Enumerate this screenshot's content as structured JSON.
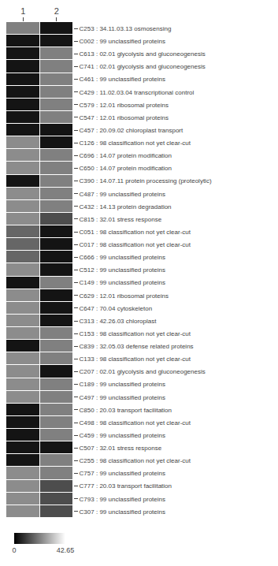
{
  "chart_data": {
    "type": "heatmap",
    "color": "gray",
    "x": [
      "1",
      "2"
    ],
    "categories": [
      "C253 : 34.11.03.13 osmosensing",
      "C002 : 99 unclassified proteins",
      "C613 : 02.01 glycolysis and gluconeogenesis",
      "C741 : 02.01 glycolysis and gluconeogenesis",
      "C461 : 99 unclassified proteins",
      "C429 : 11.02.03.04 transcriptional control",
      "C579 : 12.01 ribosomal proteins",
      "C547 : 12.01 ribosomal proteins",
      "C457 : 20.09.02 chloroplast transport",
      "C126 : 98 classification not yet clear-cut",
      "C696 : 14.07 protein modification",
      "C650 : 14.07 protein modification",
      "C390 : 14.07.11 protein processing (proteolytic)",
      "C487 : 99 unclassified proteins",
      "C432 : 14.13 protein degradation",
      "C815 : 32.01 stress response",
      "C051 : 98 classification not yet clear-cut",
      "C017 : 98 classification not yet clear-cut",
      "C666 : 99 unclassified proteins",
      "C512 : 99 unclassified proteins",
      "C149 : 99 unclassified proteins",
      "C629 : 12.01 ribosomal proteins",
      "C647 : 70.04 cytoskeleton",
      "C313 : 42.26.03 chloroplast",
      "C153 : 98 classification not yet clear-cut",
      "C839 : 32.05.03 defense related proteins",
      "C133 : 98 classification not yet clear-cut",
      "C207 : 02.01 glycolysis and gluconeogenesis",
      "C189 : 99 unclassified proteins",
      "C497 : 99 unclassified proteins",
      "C850 : 20.03 transport facilitation",
      "C498 : 98 classification not yet clear-cut",
      "C459 : 99 unclassified proteins",
      "C507 : 32.01 stress response",
      "C255 : 98 classification not yet clear-cut",
      "C757 : 99 unclassified proteins",
      "C777 : 20.03 transport facilitation",
      "C793 : 99 unclassified proteins",
      "C307 : 99 unclassified proteins"
    ],
    "cells": [
      [
        0.5,
        0.08
      ],
      [
        0.08,
        0.08
      ],
      [
        0.08,
        0.5
      ],
      [
        0.08,
        0.5
      ],
      [
        0.08,
        0.5
      ],
      [
        0.08,
        0.5
      ],
      [
        0.08,
        0.5
      ],
      [
        0.08,
        0.5
      ],
      [
        0.08,
        0.08
      ],
      [
        0.55,
        0.08
      ],
      [
        0.55,
        0.5
      ],
      [
        0.55,
        0.5
      ],
      [
        0.08,
        0.5
      ],
      [
        0.55,
        0.5
      ],
      [
        0.55,
        0.5
      ],
      [
        0.55,
        0.3
      ],
      [
        0.4,
        0.08
      ],
      [
        0.4,
        0.08
      ],
      [
        0.4,
        0.08
      ],
      [
        0.55,
        0.08
      ],
      [
        0.08,
        0.5
      ],
      [
        0.55,
        0.08
      ],
      [
        0.55,
        0.08
      ],
      [
        0.55,
        0.08
      ],
      [
        0.55,
        0.5
      ],
      [
        0.08,
        0.5
      ],
      [
        0.55,
        0.5
      ],
      [
        0.55,
        0.08
      ],
      [
        0.55,
        0.5
      ],
      [
        0.55,
        0.5
      ],
      [
        0.08,
        0.5
      ],
      [
        0.08,
        0.5
      ],
      [
        0.08,
        0.5
      ],
      [
        0.08,
        0.08
      ],
      [
        0.08,
        0.5
      ],
      [
        0.55,
        0.5
      ],
      [
        0.55,
        0.3
      ],
      [
        0.55,
        0.3
      ],
      [
        0.55,
        0.3
      ]
    ],
    "colorbar": {
      "range": [
        0,
        1
      ],
      "ticks": [
        {
          "value": 0,
          "label": "0"
        },
        {
          "value": 1,
          "label": "42.65"
        }
      ]
    }
  }
}
